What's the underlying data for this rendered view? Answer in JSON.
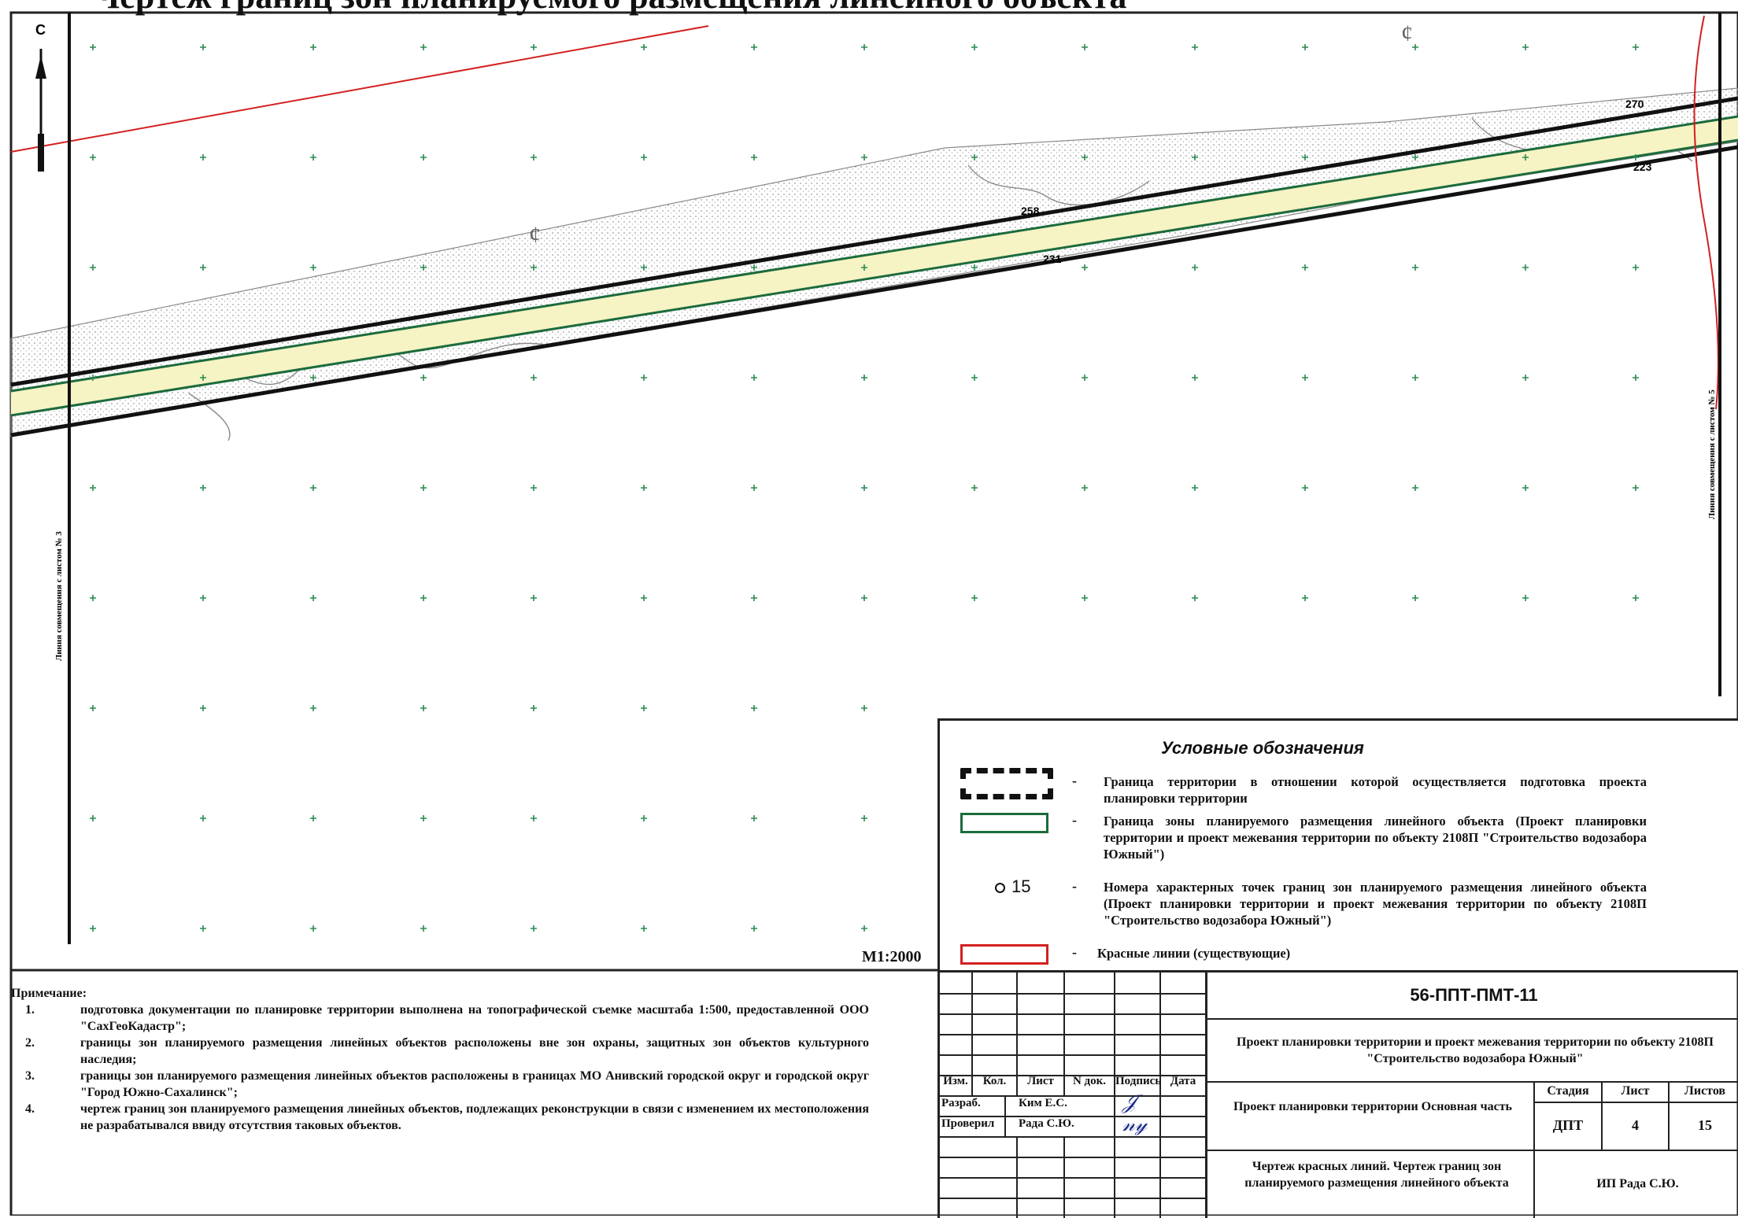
{
  "sheet_title": "Чертеж границ зон планируемого размещения линейного объекта",
  "map": {
    "north_label": "С",
    "match_line_left": "Линия совмещения с листом № 3",
    "match_line_right": "Линия совмещения с листом № 5",
    "point_labels": [
      "270",
      "223",
      "258",
      "231"
    ],
    "scale": "М1:2000",
    "colors": {
      "red_line": "#d42020",
      "zone_border": "#1c6b3c",
      "zone_fill": "#f6f3c4",
      "boundary": "#111111"
    }
  },
  "legend": {
    "title": "Условные обозначения",
    "items": [
      {
        "symbol": "dashed-boundary",
        "text": "Граница территории в отношении которой осуществляется подготовка проекта планировки территории"
      },
      {
        "symbol": "green-outline",
        "text": "Граница зоны планируемого размещения линейного объекта (Проект планировки территории и проект межевания территории по объекту 2108П \"Строительство водозабора Южный\")"
      },
      {
        "symbol": "point-number",
        "sample": "15",
        "text": "Номера характерных точек границ зон планируемого размещения линейного объекта (Проект планировки территории и проект межевания территории по объекту 2108П \"Строительство водозабора Южный\")"
      },
      {
        "symbol": "red-outline",
        "text": "Красные линии (существующие)"
      }
    ]
  },
  "notes": {
    "title": "Примечание:",
    "items": [
      {
        "num": "1.",
        "text": "подготовка документации по планировке территории выполнена на топографической съемке масштаба 1:500, предоставленной ООО \"СахГеоКадастр\";"
      },
      {
        "num": "2.",
        "text": "границы зон планируемого размещения линейных объектов расположены вне зон охраны, защитных зон объектов культурного наследия;"
      },
      {
        "num": "3.",
        "text": "границы зон планируемого размещения линейных объектов расположены в границах МО Анивский городской округ и городской округ \"Город Южно-Сахалинск\";"
      },
      {
        "num": "4.",
        "text": "чертеж границ зон планируемого размещения линейных объектов, подлежащих реконструкции в связи с изменением их местоположения не разрабатывался ввиду отсутствия таковых объектов."
      }
    ]
  },
  "title_block": {
    "code": "56-ППТ-ПМТ-11",
    "project": "Проект планировки территории и проект межевания территории по объекту 2108П \"Строительство водозабора Южный\"",
    "headers": {
      "izm": "Изм.",
      "kol": "Кол.",
      "list": "Лист",
      "ndok": "N док.",
      "podpis": "Подпись",
      "data": "Дата"
    },
    "rows": [
      {
        "role": "Разраб.",
        "name": "Ким Е.С."
      },
      {
        "role": "Проверил",
        "name": "Рада С.Ю."
      }
    ],
    "doc_part": "Проект планировки территории Основная часть",
    "stage_header": "Стадия",
    "sheet_header": "Лист",
    "sheets_header": "Листов",
    "stage": "ДПТ",
    "sheet": "4",
    "sheets": "15",
    "drawing_name": "Чертеж красных линий. Чертеж границ зон планируемого размещения линейного объекта",
    "org": "ИП Рада С.Ю."
  }
}
